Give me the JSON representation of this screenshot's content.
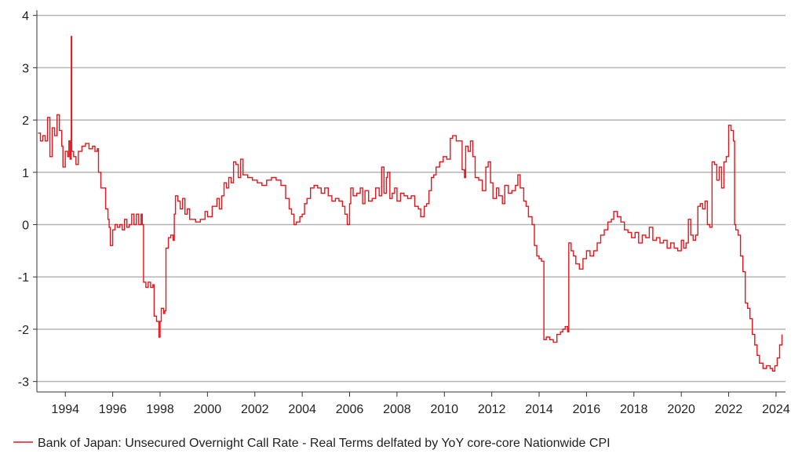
{
  "chart_data": {
    "type": "line",
    "title": "",
    "xlabel": "",
    "ylabel": "",
    "xlim": [
      1992.8,
      2024.4
    ],
    "ylim": [
      -3.2,
      4.1
    ],
    "grid": "horizontal",
    "legend_placement": "bottom-left",
    "x_ticks": [
      "1994",
      "1996",
      "1998",
      "2000",
      "2002",
      "2004",
      "2006",
      "2008",
      "2010",
      "2012",
      "2014",
      "2016",
      "2018",
      "2020",
      "2022",
      "2024"
    ],
    "y_ticks": [
      "4",
      "3",
      "2",
      "1",
      "0",
      "-1",
      "-2",
      "-3"
    ],
    "series": [
      {
        "name": "Bank of Japan: Unsecured Overnight Call Rate - Real Terms delfated by YoY core-core Nationwide CPI",
        "color": "#e8141b",
        "points": [
          [
            1992.85,
            1.75
          ],
          [
            1992.95,
            1.6
          ],
          [
            1993.05,
            1.7
          ],
          [
            1993.15,
            1.6
          ],
          [
            1993.25,
            2.05
          ],
          [
            1993.35,
            1.3
          ],
          [
            1993.45,
            1.85
          ],
          [
            1993.55,
            1.7
          ],
          [
            1993.65,
            2.1
          ],
          [
            1993.75,
            1.8
          ],
          [
            1993.85,
            1.5
          ],
          [
            1993.9,
            1.1
          ],
          [
            1994.0,
            1.4
          ],
          [
            1994.1,
            1.3
          ],
          [
            1994.15,
            1.6
          ],
          [
            1994.2,
            1.25
          ],
          [
            1994.25,
            3.6
          ],
          [
            1994.27,
            1.4
          ],
          [
            1994.35,
            1.3
          ],
          [
            1994.45,
            1.15
          ],
          [
            1994.55,
            1.4
          ],
          [
            1994.7,
            1.5
          ],
          [
            1994.85,
            1.55
          ],
          [
            1995.0,
            1.45
          ],
          [
            1995.15,
            1.5
          ],
          [
            1995.25,
            1.4
          ],
          [
            1995.35,
            1.45
          ],
          [
            1995.4,
            1.0
          ],
          [
            1995.5,
            0.7
          ],
          [
            1995.6,
            0.7
          ],
          [
            1995.7,
            0.3
          ],
          [
            1995.8,
            0.1
          ],
          [
            1995.85,
            -0.05
          ],
          [
            1995.9,
            -0.4
          ],
          [
            1996.0,
            -0.1
          ],
          [
            1996.1,
            0.0
          ],
          [
            1996.2,
            -0.05
          ],
          [
            1996.3,
            0.0
          ],
          [
            1996.4,
            -0.1
          ],
          [
            1996.5,
            0.1
          ],
          [
            1996.6,
            -0.05
          ],
          [
            1996.7,
            0.0
          ],
          [
            1996.8,
            0.2
          ],
          [
            1996.9,
            0.0
          ],
          [
            1997.0,
            0.2
          ],
          [
            1997.1,
            0.0
          ],
          [
            1997.2,
            0.2
          ],
          [
            1997.25,
            0.0
          ],
          [
            1997.3,
            -1.1
          ],
          [
            1997.4,
            -1.2
          ],
          [
            1997.5,
            -1.1
          ],
          [
            1997.6,
            -1.2
          ],
          [
            1997.7,
            -1.15
          ],
          [
            1997.75,
            -1.75
          ],
          [
            1997.85,
            -1.85
          ],
          [
            1997.95,
            -2.15
          ],
          [
            1998.0,
            -1.85
          ],
          [
            1998.05,
            -1.6
          ],
          [
            1998.15,
            -1.7
          ],
          [
            1998.2,
            -1.65
          ],
          [
            1998.25,
            -0.45
          ],
          [
            1998.35,
            -0.25
          ],
          [
            1998.45,
            -0.2
          ],
          [
            1998.55,
            -0.3
          ],
          [
            1998.6,
            0.2
          ],
          [
            1998.65,
            0.55
          ],
          [
            1998.75,
            0.45
          ],
          [
            1998.85,
            0.3
          ],
          [
            1998.95,
            0.5
          ],
          [
            1999.05,
            0.2
          ],
          [
            1999.15,
            0.3
          ],
          [
            1999.25,
            0.1
          ],
          [
            1999.5,
            0.05
          ],
          [
            1999.7,
            0.1
          ],
          [
            1999.9,
            0.25
          ],
          [
            2000.0,
            0.15
          ],
          [
            2000.2,
            0.35
          ],
          [
            2000.4,
            0.5
          ],
          [
            2000.5,
            0.3
          ],
          [
            2000.6,
            0.55
          ],
          [
            2000.7,
            0.8
          ],
          [
            2000.8,
            0.7
          ],
          [
            2000.9,
            0.9
          ],
          [
            2001.0,
            0.8
          ],
          [
            2001.1,
            1.2
          ],
          [
            2001.2,
            1.15
          ],
          [
            2001.3,
            0.9
          ],
          [
            2001.4,
            1.25
          ],
          [
            2001.5,
            0.95
          ],
          [
            2001.7,
            0.9
          ],
          [
            2001.9,
            0.85
          ],
          [
            2002.1,
            0.8
          ],
          [
            2002.3,
            0.75
          ],
          [
            2002.5,
            0.85
          ],
          [
            2002.7,
            0.9
          ],
          [
            2002.9,
            0.85
          ],
          [
            2003.1,
            0.75
          ],
          [
            2003.3,
            0.5
          ],
          [
            2003.45,
            0.3
          ],
          [
            2003.55,
            0.2
          ],
          [
            2003.65,
            0.0
          ],
          [
            2003.75,
            0.05
          ],
          [
            2003.9,
            0.15
          ],
          [
            2004.0,
            0.2
          ],
          [
            2004.1,
            0.4
          ],
          [
            2004.2,
            0.5
          ],
          [
            2004.35,
            0.7
          ],
          [
            2004.5,
            0.75
          ],
          [
            2004.65,
            0.7
          ],
          [
            2004.8,
            0.6
          ],
          [
            2004.95,
            0.7
          ],
          [
            2005.1,
            0.55
          ],
          [
            2005.25,
            0.45
          ],
          [
            2005.4,
            0.5
          ],
          [
            2005.55,
            0.45
          ],
          [
            2005.7,
            0.35
          ],
          [
            2005.8,
            0.2
          ],
          [
            2005.9,
            0.0
          ],
          [
            2006.0,
            0.4
          ],
          [
            2006.05,
            0.7
          ],
          [
            2006.15,
            0.55
          ],
          [
            2006.3,
            0.6
          ],
          [
            2006.45,
            0.7
          ],
          [
            2006.55,
            0.4
          ],
          [
            2006.65,
            0.65
          ],
          [
            2006.8,
            0.45
          ],
          [
            2006.95,
            0.5
          ],
          [
            2007.1,
            0.7
          ],
          [
            2007.25,
            0.55
          ],
          [
            2007.35,
            1.1
          ],
          [
            2007.45,
            0.6
          ],
          [
            2007.55,
            0.9
          ],
          [
            2007.6,
            1.0
          ],
          [
            2007.7,
            0.5
          ],
          [
            2007.8,
            0.6
          ],
          [
            2007.9,
            0.7
          ],
          [
            2008.0,
            0.45
          ],
          [
            2008.15,
            0.6
          ],
          [
            2008.3,
            0.55
          ],
          [
            2008.45,
            0.5
          ],
          [
            2008.6,
            0.55
          ],
          [
            2008.75,
            0.35
          ],
          [
            2008.9,
            0.3
          ],
          [
            2009.0,
            0.15
          ],
          [
            2009.15,
            0.35
          ],
          [
            2009.25,
            0.4
          ],
          [
            2009.35,
            0.65
          ],
          [
            2009.45,
            0.9
          ],
          [
            2009.55,
            0.95
          ],
          [
            2009.65,
            1.1
          ],
          [
            2009.8,
            1.2
          ],
          [
            2009.95,
            1.3
          ],
          [
            2010.1,
            1.25
          ],
          [
            2010.25,
            1.65
          ],
          [
            2010.35,
            1.7
          ],
          [
            2010.5,
            1.6
          ],
          [
            2010.7,
            1.6
          ],
          [
            2010.75,
            1.05
          ],
          [
            2010.85,
            0.9
          ],
          [
            2010.9,
            1.5
          ],
          [
            2011.0,
            1.4
          ],
          [
            2011.1,
            1.6
          ],
          [
            2011.2,
            1.3
          ],
          [
            2011.3,
            0.9
          ],
          [
            2011.45,
            0.85
          ],
          [
            2011.6,
            0.65
          ],
          [
            2011.75,
            1.1
          ],
          [
            2011.85,
            1.2
          ],
          [
            2011.95,
            0.8
          ],
          [
            2012.05,
            0.5
          ],
          [
            2012.2,
            0.7
          ],
          [
            2012.3,
            0.55
          ],
          [
            2012.45,
            0.4
          ],
          [
            2012.55,
            0.75
          ],
          [
            2012.7,
            0.6
          ],
          [
            2012.85,
            0.65
          ],
          [
            2013.0,
            0.75
          ],
          [
            2013.1,
            0.95
          ],
          [
            2013.2,
            0.7
          ],
          [
            2013.35,
            0.45
          ],
          [
            2013.45,
            0.35
          ],
          [
            2013.55,
            0.15
          ],
          [
            2013.7,
            0.0
          ],
          [
            2013.8,
            -0.4
          ],
          [
            2013.9,
            -0.6
          ],
          [
            2014.0,
            -0.65
          ],
          [
            2014.1,
            -0.7
          ],
          [
            2014.2,
            -2.2
          ],
          [
            2014.3,
            -2.15
          ],
          [
            2014.45,
            -2.2
          ],
          [
            2014.6,
            -2.25
          ],
          [
            2014.75,
            -2.1
          ],
          [
            2014.9,
            -2.05
          ],
          [
            2015.0,
            -2.0
          ],
          [
            2015.1,
            -1.95
          ],
          [
            2015.2,
            -2.05
          ],
          [
            2015.25,
            -0.35
          ],
          [
            2015.35,
            -0.5
          ],
          [
            2015.45,
            -0.6
          ],
          [
            2015.55,
            -0.75
          ],
          [
            2015.7,
            -0.85
          ],
          [
            2015.85,
            -0.65
          ],
          [
            2016.0,
            -0.5
          ],
          [
            2016.15,
            -0.6
          ],
          [
            2016.3,
            -0.5
          ],
          [
            2016.45,
            -0.35
          ],
          [
            2016.6,
            -0.2
          ],
          [
            2016.75,
            -0.1
          ],
          [
            2016.9,
            0.05
          ],
          [
            2017.05,
            0.1
          ],
          [
            2017.15,
            0.25
          ],
          [
            2017.3,
            0.15
          ],
          [
            2017.45,
            0.05
          ],
          [
            2017.6,
            -0.1
          ],
          [
            2017.75,
            -0.15
          ],
          [
            2017.9,
            -0.25
          ],
          [
            2018.05,
            -0.15
          ],
          [
            2018.2,
            -0.35
          ],
          [
            2018.35,
            -0.2
          ],
          [
            2018.5,
            -0.25
          ],
          [
            2018.65,
            -0.05
          ],
          [
            2018.8,
            -0.3
          ],
          [
            2018.95,
            -0.25
          ],
          [
            2019.1,
            -0.35
          ],
          [
            2019.25,
            -0.3
          ],
          [
            2019.4,
            -0.45
          ],
          [
            2019.55,
            -0.35
          ],
          [
            2019.7,
            -0.45
          ],
          [
            2019.85,
            -0.5
          ],
          [
            2020.0,
            -0.3
          ],
          [
            2020.1,
            -0.45
          ],
          [
            2020.2,
            -0.35
          ],
          [
            2020.3,
            0.1
          ],
          [
            2020.4,
            -0.2
          ],
          [
            2020.5,
            -0.3
          ],
          [
            2020.6,
            -0.2
          ],
          [
            2020.7,
            0.35
          ],
          [
            2020.8,
            0.4
          ],
          [
            2020.9,
            0.3
          ],
          [
            2021.0,
            0.45
          ],
          [
            2021.1,
            0.0
          ],
          [
            2021.2,
            -0.05
          ],
          [
            2021.3,
            1.2
          ],
          [
            2021.4,
            1.15
          ],
          [
            2021.5,
            0.85
          ],
          [
            2021.6,
            1.1
          ],
          [
            2021.7,
            0.7
          ],
          [
            2021.8,
            1.2
          ],
          [
            2021.9,
            1.3
          ],
          [
            2022.0,
            1.9
          ],
          [
            2022.1,
            1.8
          ],
          [
            2022.2,
            1.6
          ],
          [
            2022.25,
            0.0
          ],
          [
            2022.3,
            -0.1
          ],
          [
            2022.4,
            -0.2
          ],
          [
            2022.5,
            -0.6
          ],
          [
            2022.6,
            -0.9
          ],
          [
            2022.7,
            -1.5
          ],
          [
            2022.8,
            -1.6
          ],
          [
            2022.9,
            -1.8
          ],
          [
            2023.0,
            -2.1
          ],
          [
            2023.1,
            -2.3
          ],
          [
            2023.2,
            -2.5
          ],
          [
            2023.3,
            -2.65
          ],
          [
            2023.45,
            -2.75
          ],
          [
            2023.6,
            -2.7
          ],
          [
            2023.75,
            -2.75
          ],
          [
            2023.85,
            -2.8
          ],
          [
            2023.95,
            -2.7
          ],
          [
            2024.05,
            -2.55
          ],
          [
            2024.15,
            -2.3
          ],
          [
            2024.25,
            -2.1
          ]
        ]
      }
    ]
  }
}
